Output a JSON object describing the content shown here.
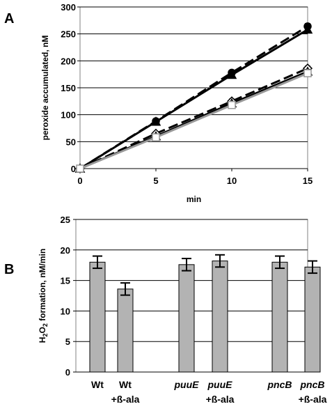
{
  "chart_data": [
    {
      "panel": "A",
      "type": "line",
      "xlabel": "min",
      "ylabel": "peroxide accumulated, nM",
      "xlim": [
        0,
        15
      ],
      "ylim": [
        0,
        300
      ],
      "x_ticks": [
        0,
        5,
        10,
        15
      ],
      "y_ticks": [
        0,
        50,
        100,
        150,
        200,
        250,
        300
      ],
      "grid": "horizontal",
      "series": [
        {
          "marker": "circle-filled",
          "style": "dashed",
          "color": "#000000",
          "x": [
            0,
            5,
            10,
            15
          ],
          "y": [
            0,
            88,
            178,
            264
          ],
          "err": [
            2,
            4,
            4,
            5
          ]
        },
        {
          "marker": "triangle-filled",
          "style": "solid",
          "color": "#000000",
          "x": [
            0,
            5,
            10,
            15
          ],
          "y": [
            0,
            87,
            174,
            258
          ],
          "err": [
            2,
            4,
            4,
            5
          ]
        },
        {
          "marker": "diamond-open",
          "style": "dashed",
          "color": "#000000",
          "x": [
            0,
            5,
            10,
            15
          ],
          "y": [
            0,
            65,
            125,
            186
          ],
          "err": [
            2,
            3,
            4,
            4
          ]
        },
        {
          "marker": "triangle-open",
          "style": "solid",
          "color": "#000000",
          "x": [
            0,
            5,
            10,
            15
          ],
          "y": [
            0,
            60,
            121,
            180
          ],
          "err": [
            2,
            3,
            3,
            4
          ]
        },
        {
          "marker": "square-open",
          "style": "solid",
          "color": "#999999",
          "x": [
            0,
            5,
            10,
            15
          ],
          "y": [
            0,
            58,
            118,
            177
          ],
          "err": [
            2,
            3,
            3,
            4
          ]
        }
      ]
    },
    {
      "panel": "B",
      "type": "bar",
      "ylabel": "H2O2 formation, nM/min",
      "ylim": [
        0,
        25
      ],
      "y_ticks": [
        0,
        5,
        10,
        15,
        20,
        25
      ],
      "grid": "horizontal",
      "bar_color": "#b3b3b3",
      "categories": [
        {
          "line1": "Wt",
          "line2": "",
          "italic": false,
          "value": 18.0,
          "err": 1.0
        },
        {
          "line1": "Wt",
          "line2": "+ß-ala",
          "italic": false,
          "value": 13.6,
          "err": 1.0
        },
        {
          "line1": "puuE",
          "line2": "",
          "italic": true,
          "value": 17.6,
          "err": 1.0
        },
        {
          "line1": "puuE",
          "line2": "+ß-ala",
          "italic": true,
          "value": 18.2,
          "err": 1.0
        },
        {
          "line1": "pncB",
          "line2": "",
          "italic": true,
          "value": 18.0,
          "err": 1.0
        },
        {
          "line1": "pncB",
          "line2": "+ß-ala",
          "italic": true,
          "value": 17.2,
          "err": 1.0
        }
      ]
    }
  ],
  "labels": {
    "panelA": "A",
    "panelB": "B"
  }
}
